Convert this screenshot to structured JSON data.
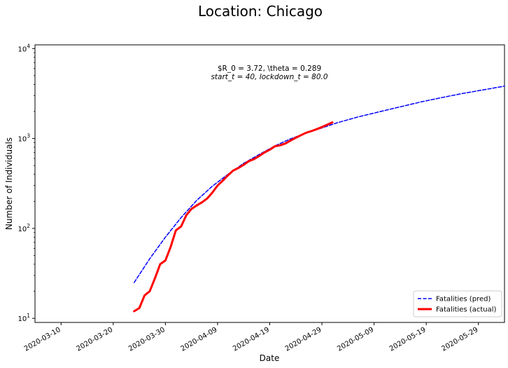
{
  "chart_data": {
    "type": "line",
    "title": "Location: Chicago",
    "xlabel": "Date",
    "ylabel": "Number of Individuals",
    "yscale": "log",
    "ylim": [
      9,
      11000
    ],
    "xlim": [
      "2020-03-05",
      "2020-06-03"
    ],
    "x_ticks": [
      "2020-03-10",
      "2020-03-20",
      "2020-03-30",
      "2020-04-09",
      "2020-04-19",
      "2020-04-29",
      "2020-05-09",
      "2020-05-19",
      "2020-05-29"
    ],
    "y_ticks": [
      {
        "value": 10,
        "base": "10",
        "exp": "1"
      },
      {
        "value": 100,
        "base": "10",
        "exp": "2"
      },
      {
        "value": 1000,
        "base": "10",
        "exp": "3"
      },
      {
        "value": 10000,
        "base": "10",
        "exp": "4"
      }
    ],
    "annotation": {
      "line1": "$R_0 = 3.72, \\theta = 0.289",
      "line2": "start_t = 40, lockdown_t = 80.0"
    },
    "legend_position": "lower-right",
    "series": [
      {
        "name": "Fatalities (pred)",
        "color": "#0000ff",
        "style": "dashed",
        "x": [
          "2020-03-24",
          "2020-03-27",
          "2020-03-30",
          "2020-04-02",
          "2020-04-05",
          "2020-04-08",
          "2020-04-11",
          "2020-04-14",
          "2020-04-17",
          "2020-04-20",
          "2020-04-23",
          "2020-04-26",
          "2020-04-29",
          "2020-05-02",
          "2020-05-06",
          "2020-05-10",
          "2020-05-14",
          "2020-05-18",
          "2020-05-22",
          "2020-05-26",
          "2020-05-30",
          "2020-06-03"
        ],
        "y": [
          25,
          46,
          80,
          132,
          205,
          295,
          400,
          530,
          665,
          830,
          990,
          1150,
          1310,
          1500,
          1740,
          1980,
          2250,
          2550,
          2850,
          3170,
          3480,
          3820
        ]
      },
      {
        "name": "Fatalities (actual)",
        "color": "#ff0000",
        "style": "solid",
        "x": [
          "2020-03-24",
          "2020-03-25",
          "2020-03-26",
          "2020-03-27",
          "2020-03-28",
          "2020-03-29",
          "2020-03-30",
          "2020-03-31",
          "2020-04-01",
          "2020-04-02",
          "2020-04-03",
          "2020-04-04",
          "2020-04-05",
          "2020-04-06",
          "2020-04-07",
          "2020-04-08",
          "2020-04-09",
          "2020-04-10",
          "2020-04-11",
          "2020-04-12",
          "2020-04-13",
          "2020-04-14",
          "2020-04-15",
          "2020-04-16",
          "2020-04-17",
          "2020-04-18",
          "2020-04-19",
          "2020-04-20",
          "2020-04-21",
          "2020-04-22",
          "2020-04-23",
          "2020-04-24",
          "2020-04-25",
          "2020-04-26",
          "2020-04-27",
          "2020-04-28",
          "2020-04-29",
          "2020-04-30",
          "2020-05-01"
        ],
        "y": [
          12,
          13,
          18,
          20,
          28,
          40,
          44,
          62,
          95,
          105,
          140,
          165,
          180,
          195,
          215,
          250,
          300,
          340,
          390,
          440,
          470,
          510,
          560,
          590,
          640,
          700,
          750,
          820,
          840,
          880,
          950,
          1020,
          1090,
          1160,
          1210,
          1270,
          1340,
          1420,
          1510
        ]
      }
    ]
  }
}
